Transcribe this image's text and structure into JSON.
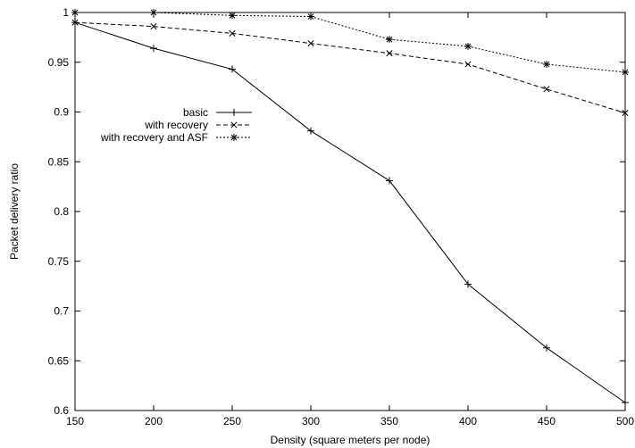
{
  "chart_data": {
    "type": "line",
    "title": "",
    "xlabel": "Density (square meters per node)",
    "ylabel": "Packet delivery ratio",
    "xlim": [
      150,
      500
    ],
    "ylim": [
      0.6,
      1.0
    ],
    "x_ticks": [
      150,
      200,
      250,
      300,
      350,
      400,
      450,
      500
    ],
    "y_ticks": [
      0.6,
      0.65,
      0.7,
      0.75,
      0.8,
      0.85,
      0.9,
      0.95,
      1.0
    ],
    "y_tick_labels": [
      "0.6",
      "0.65",
      "0.7",
      "0.75",
      "0.8",
      "0.85",
      "0.9",
      "0.95",
      "1"
    ],
    "grid": false,
    "legend_position": "left",
    "x": [
      150,
      200,
      250,
      300,
      350,
      400,
      450,
      500
    ],
    "series": [
      {
        "name": "basic",
        "marker": "plus",
        "dash": "solid",
        "values": [
          0.99,
          0.964,
          0.943,
          0.881,
          0.831,
          0.727,
          0.663,
          0.608
        ]
      },
      {
        "name": "with recovery",
        "marker": "cross",
        "dash": "dashed",
        "values": [
          0.99,
          0.986,
          0.979,
          0.969,
          0.959,
          0.948,
          0.923,
          0.899
        ]
      },
      {
        "name": "with recovery and ASF",
        "marker": "star",
        "dash": "dotted",
        "values": [
          1.0,
          1.0,
          0.997,
          0.996,
          0.973,
          0.966,
          0.948,
          0.94
        ]
      }
    ]
  }
}
